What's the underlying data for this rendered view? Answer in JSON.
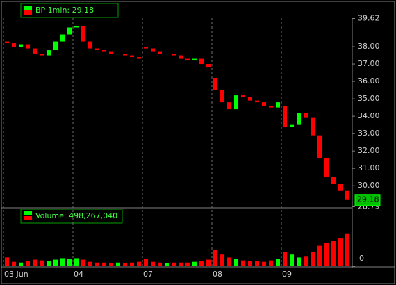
{
  "chart_data": [
    {
      "type": "candlestick",
      "legend": "BP 1min: 29.18",
      "last_price": 29.18,
      "up_color": "#00ff00",
      "down_color": "#ff0000",
      "open": [
        38.3,
        38.2,
        38.0,
        38.1,
        37.9,
        37.6,
        37.5,
        37.8,
        38.3,
        38.7,
        39.1,
        39.2,
        38.3,
        37.9,
        37.8,
        37.7,
        37.6,
        37.6,
        37.5,
        37.4,
        38.0,
        37.9,
        37.7,
        37.6,
        37.6,
        37.5,
        37.3,
        37.2,
        37.3,
        37.0,
        36.2,
        35.5,
        34.8,
        34.4,
        35.2,
        35.1,
        34.9,
        34.8,
        34.6,
        34.5,
        34.6,
        33.4,
        33.5,
        34.2,
        33.9,
        32.9,
        31.6,
        30.5,
        30.1,
        29.7
      ],
      "close": [
        38.2,
        38.0,
        38.1,
        37.9,
        37.6,
        37.5,
        37.8,
        38.3,
        38.7,
        39.1,
        39.2,
        38.3,
        37.9,
        37.8,
        37.7,
        37.6,
        37.6,
        37.5,
        37.4,
        37.3,
        37.9,
        37.7,
        37.6,
        37.6,
        37.5,
        37.3,
        37.2,
        37.3,
        37.0,
        36.8,
        35.5,
        34.8,
        34.4,
        35.2,
        35.1,
        34.9,
        34.8,
        34.6,
        34.5,
        34.8,
        33.4,
        33.5,
        34.2,
        33.9,
        32.9,
        31.6,
        30.5,
        30.1,
        29.7,
        29.18
      ],
      "ylim": [
        28.79,
        39.62
      ],
      "yticks": [
        39.62,
        {
          "value": 38,
          "label": "38.00"
        },
        {
          "value": 37,
          "label": "37.00"
        },
        {
          "value": 36,
          "label": "36.00"
        },
        {
          "value": 35,
          "label": "35.00"
        },
        {
          "value": 34,
          "label": "34.00"
        },
        {
          "value": 33,
          "label": "33.00"
        },
        {
          "value": 32,
          "label": "32.00"
        },
        {
          "value": 31,
          "label": "31.00"
        },
        {
          "value": 30,
          "label": "30.00"
        },
        28.79
      ]
    },
    {
      "type": "bar",
      "legend": "Volume: 498,267,040",
      "categories": [
        "03 Jun",
        null,
        null,
        null,
        null,
        null,
        null,
        null,
        null,
        null,
        "04",
        null,
        null,
        null,
        null,
        null,
        null,
        null,
        null,
        null,
        "07",
        null,
        null,
        null,
        null,
        null,
        null,
        null,
        null,
        null,
        "08",
        null,
        null,
        null,
        null,
        null,
        null,
        null,
        null,
        null,
        "09",
        null,
        null,
        null,
        null,
        null,
        null,
        null,
        null,
        null
      ],
      "values": [
        1200000,
        600000,
        500000,
        700000,
        900000,
        800000,
        700000,
        900000,
        1100000,
        1000000,
        1100000,
        900000,
        600000,
        500000,
        500000,
        400000,
        500000,
        400000,
        500000,
        600000,
        1000000,
        600000,
        500000,
        400000,
        500000,
        500000,
        500000,
        600000,
        700000,
        900000,
        2200000,
        1600000,
        1200000,
        1000000,
        800000,
        700000,
        700000,
        600000,
        800000,
        1000000,
        2000000,
        1600000,
        1200000,
        1400000,
        2000000,
        2800000,
        3200000,
        3500000,
        3800000,
        4500000
      ],
      "ylim": [
        0,
        6000000
      ],
      "yticks": [
        0
      ]
    }
  ]
}
